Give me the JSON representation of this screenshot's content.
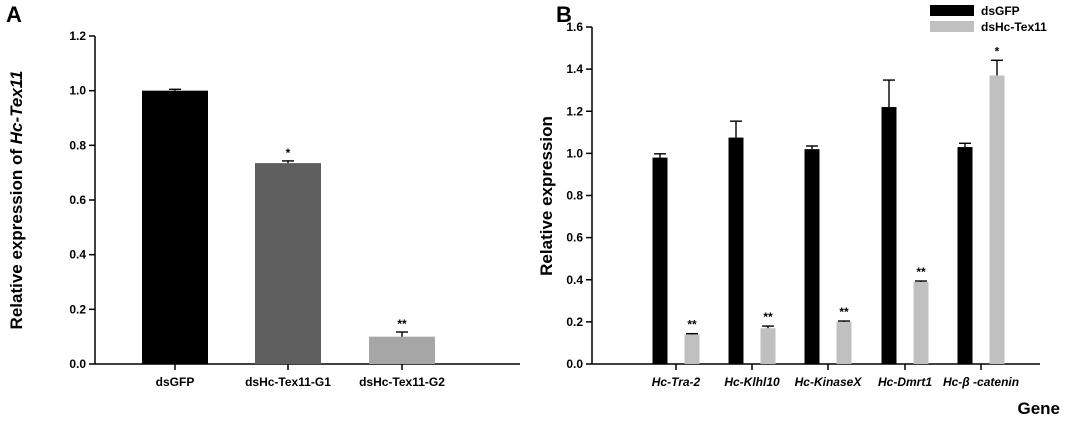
{
  "chart_data": [
    {
      "panel": "A",
      "type": "bar",
      "title": "",
      "xlabel": "",
      "ylabel_prefix": "Relative expression of ",
      "ylabel_gene": "Hc-Tex11",
      "ylim": [
        0,
        1.2
      ],
      "yticks": [
        "0.0",
        "0.2",
        "0.4",
        "0.6",
        "0.8",
        "1.0",
        "1.2"
      ],
      "grid": false,
      "categories": [
        "dsGFP",
        "dsHc-Tex11-G1",
        "dsHc-Tex11-G2"
      ],
      "values": [
        1.0,
        0.735,
        0.1
      ],
      "errors": [
        0.005,
        0.008,
        0.017
      ],
      "significance": [
        "",
        "*",
        "**"
      ],
      "colors": [
        "#000000",
        "#5f5f5f",
        "#a6a6a6"
      ]
    },
    {
      "panel": "B",
      "type": "bar",
      "title": "",
      "xlabel": "Gene",
      "ylabel": "Relative expression",
      "ylim": [
        0,
        1.6
      ],
      "yticks": [
        "0.0",
        "0.2",
        "0.4",
        "0.6",
        "0.8",
        "1.0",
        "1.2",
        "1.4",
        "1.6"
      ],
      "grid": false,
      "legend_position": "top-right",
      "categories": [
        "Hc-Tra-2",
        "Hc-Klhl10",
        "Hc-KinaseX",
        "Hc-Dmrt1",
        "Hc-β -catenin"
      ],
      "series": [
        {
          "name": "dsGFP",
          "color": "#000000",
          "values": [
            0.98,
            1.075,
            1.02,
            1.22,
            1.03
          ],
          "errors": [
            0.018,
            0.078,
            0.015,
            0.128,
            0.018
          ],
          "significance": [
            "",
            "",
            "",
            "",
            ""
          ]
        },
        {
          "name": "dsHc-Tex11",
          "color": "#c0c0c0",
          "values": [
            0.14,
            0.17,
            0.2,
            0.39,
            1.37
          ],
          "errors": [
            0.004,
            0.01,
            0.004,
            0.004,
            0.072
          ],
          "significance": [
            "**",
            "**",
            "**",
            "**",
            "*"
          ]
        }
      ]
    }
  ]
}
